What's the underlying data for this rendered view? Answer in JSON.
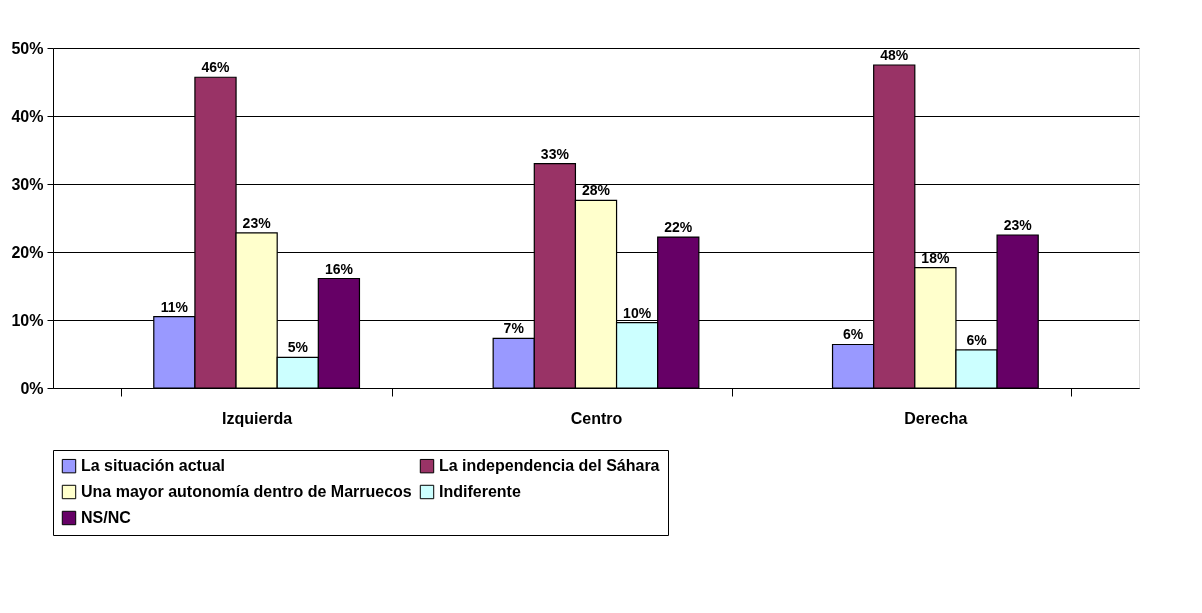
{
  "chart_data": {
    "type": "bar",
    "categories": [
      "Izquierda",
      "Centro",
      "Derecha"
    ],
    "series": [
      {
        "name": "La situación actual",
        "color": "#9999ff",
        "values": [
          10.5,
          7.3,
          6.4
        ],
        "value_labels": [
          "11%",
          "7%",
          "6%"
        ]
      },
      {
        "name": "La independencia del Sáhara",
        "color": "#993366",
        "values": [
          45.7,
          33.0,
          47.5
        ],
        "value_labels": [
          "46%",
          "33%",
          "48%"
        ]
      },
      {
        "name": "Una mayor autonomía dentro de Marruecos",
        "color": "#ffffcc",
        "values": [
          22.8,
          27.6,
          17.7
        ],
        "value_labels": [
          "23%",
          "28%",
          "18%"
        ]
      },
      {
        "name": "Indiferente",
        "color": "#ccffff",
        "values": [
          4.5,
          9.6,
          5.6
        ],
        "value_labels": [
          "5%",
          "10%",
          "6%"
        ]
      },
      {
        "name": "NS/NC",
        "color": "#660066",
        "values": [
          16.1,
          22.2,
          22.5
        ],
        "value_labels": [
          "16%",
          "22%",
          "23%"
        ]
      }
    ],
    "ylim": [
      0,
      50
    ],
    "yticks": [
      {
        "value": 0,
        "label": "0%"
      },
      {
        "value": 10,
        "label": "10%"
      },
      {
        "value": 20,
        "label": "20%"
      },
      {
        "value": 30,
        "label": "30%"
      },
      {
        "value": 40,
        "label": "40%"
      },
      {
        "value": 50,
        "label": "50%"
      }
    ],
    "grid": "y",
    "legend": "bottom"
  }
}
